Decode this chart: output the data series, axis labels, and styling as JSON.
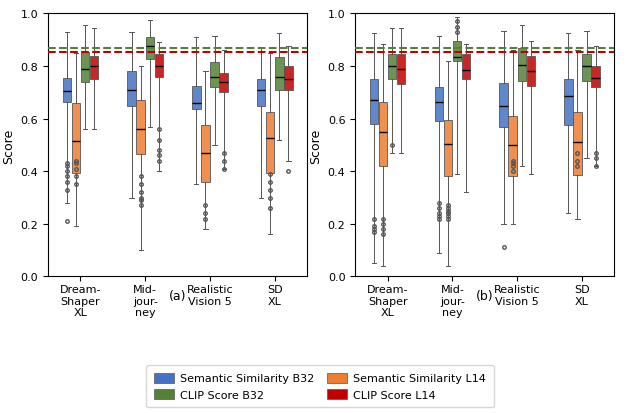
{
  "title_a": "(a)",
  "title_b": "(b)",
  "ylabel": "Score",
  "ylim": [
    0.0,
    1.0
  ],
  "yticks": [
    0.0,
    0.2,
    0.4,
    0.6,
    0.8,
    1.0
  ],
  "categories": [
    "Dream-\nShaper\nXL",
    "Mid-\njour-\nney",
    "Realistic\nVision 5",
    "SD\nXL"
  ],
  "colors": {
    "blue": "#4472C4",
    "orange": "#ED7D31",
    "green": "#548235",
    "red": "#C00000"
  },
  "hline_green": 0.869,
  "hline_red": 0.853,
  "box_width": 0.13,
  "subplot_a": {
    "blue": {
      "DreamShaper": {
        "q1": 0.665,
        "median": 0.705,
        "q3": 0.755,
        "whislo": 0.28,
        "whishi": 0.93,
        "fliers": [
          0.43,
          0.42,
          0.4,
          0.38,
          0.36,
          0.33,
          0.21
        ]
      },
      "Midjourney": {
        "q1": 0.65,
        "median": 0.71,
        "q3": 0.78,
        "whislo": 0.3,
        "whishi": 0.93,
        "fliers": []
      },
      "RealisticVision": {
        "q1": 0.635,
        "median": 0.66,
        "q3": 0.725,
        "whislo": 0.35,
        "whishi": 0.91,
        "fliers": []
      },
      "SDXL": {
        "q1": 0.65,
        "median": 0.71,
        "q3": 0.75,
        "whislo": 0.3,
        "whishi": 0.87,
        "fliers": []
      }
    },
    "orange": {
      "DreamShaper": {
        "q1": 0.395,
        "median": 0.515,
        "q3": 0.66,
        "whislo": 0.19,
        "whishi": 0.85,
        "fliers": [
          0.44,
          0.43,
          0.41,
          0.38,
          0.35
        ]
      },
      "Midjourney": {
        "q1": 0.465,
        "median": 0.56,
        "q3": 0.67,
        "whislo": 0.1,
        "whishi": 0.8,
        "fliers": [
          0.38,
          0.35,
          0.32,
          0.3,
          0.29,
          0.27
        ]
      },
      "RealisticVision": {
        "q1": 0.36,
        "median": 0.47,
        "q3": 0.575,
        "whislo": 0.18,
        "whishi": 0.78,
        "fliers": [
          0.27,
          0.24,
          0.22
        ]
      },
      "SDXL": {
        "q1": 0.395,
        "median": 0.525,
        "q3": 0.625,
        "whislo": 0.16,
        "whishi": 0.85,
        "fliers": [
          0.39,
          0.36,
          0.33,
          0.3,
          0.26
        ]
      }
    },
    "green": {
      "DreamShaper": {
        "q1": 0.74,
        "median": 0.79,
        "q3": 0.855,
        "whislo": 0.56,
        "whishi": 0.955,
        "fliers": []
      },
      "Midjourney": {
        "q1": 0.825,
        "median": 0.875,
        "q3": 0.91,
        "whislo": 0.57,
        "whishi": 0.975,
        "fliers": []
      },
      "RealisticVision": {
        "q1": 0.72,
        "median": 0.76,
        "q3": 0.815,
        "whislo": 0.5,
        "whishi": 0.915,
        "fliers": []
      },
      "SDXL": {
        "q1": 0.71,
        "median": 0.76,
        "q3": 0.835,
        "whislo": 0.52,
        "whishi": 0.925,
        "fliers": []
      }
    },
    "red": {
      "DreamShaper": {
        "q1": 0.75,
        "median": 0.8,
        "q3": 0.84,
        "whislo": 0.56,
        "whishi": 0.945,
        "fliers": []
      },
      "Midjourney": {
        "q1": 0.76,
        "median": 0.8,
        "q3": 0.845,
        "whislo": 0.4,
        "whishi": 0.89,
        "fliers": [
          0.56,
          0.52,
          0.48,
          0.46,
          0.44
        ]
      },
      "RealisticVision": {
        "q1": 0.7,
        "median": 0.74,
        "q3": 0.775,
        "whislo": 0.41,
        "whishi": 0.86,
        "fliers": [
          0.47,
          0.44,
          0.41
        ]
      },
      "SDXL": {
        "q1": 0.71,
        "median": 0.75,
        "q3": 0.8,
        "whislo": 0.44,
        "whishi": 0.875,
        "fliers": [
          0.4
        ]
      }
    }
  },
  "subplot_b": {
    "blue": {
      "DreamShaper": {
        "q1": 0.58,
        "median": 0.67,
        "q3": 0.75,
        "whislo": 0.05,
        "whishi": 0.925,
        "fliers": [
          0.22,
          0.19,
          0.18,
          0.17
        ]
      },
      "Midjourney": {
        "q1": 0.59,
        "median": 0.665,
        "q3": 0.72,
        "whislo": 0.09,
        "whishi": 0.915,
        "fliers": [
          0.28,
          0.26,
          0.24,
          0.23,
          0.22
        ]
      },
      "RealisticVision": {
        "q1": 0.57,
        "median": 0.65,
        "q3": 0.735,
        "whislo": 0.2,
        "whishi": 0.935,
        "fliers": [
          0.11
        ]
      },
      "SDXL": {
        "q1": 0.575,
        "median": 0.685,
        "q3": 0.75,
        "whislo": 0.24,
        "whishi": 0.925,
        "fliers": []
      }
    },
    "orange": {
      "DreamShaper": {
        "q1": 0.42,
        "median": 0.55,
        "q3": 0.665,
        "whislo": 0.04,
        "whishi": 0.885,
        "fliers": [
          0.22,
          0.2,
          0.18,
          0.16
        ]
      },
      "Midjourney": {
        "q1": 0.38,
        "median": 0.505,
        "q3": 0.595,
        "whislo": 0.04,
        "whishi": 0.82,
        "fliers": [
          0.27,
          0.26,
          0.25,
          0.24,
          0.23,
          0.22
        ]
      },
      "RealisticVision": {
        "q1": 0.38,
        "median": 0.5,
        "q3": 0.61,
        "whislo": 0.2,
        "whishi": 0.86,
        "fliers": [
          0.44,
          0.43,
          0.42,
          0.4
        ]
      },
      "SDXL": {
        "q1": 0.385,
        "median": 0.51,
        "q3": 0.625,
        "whislo": 0.22,
        "whishi": 0.86,
        "fliers": [
          0.47,
          0.44,
          0.42
        ]
      }
    },
    "green": {
      "DreamShaper": {
        "q1": 0.75,
        "median": 0.8,
        "q3": 0.845,
        "whislo": 0.47,
        "whishi": 0.945,
        "fliers": [
          0.5
        ]
      },
      "Midjourney": {
        "q1": 0.82,
        "median": 0.835,
        "q3": 0.895,
        "whislo": 0.39,
        "whishi": 0.985,
        "fliers": [
          0.93,
          0.95,
          0.97
        ]
      },
      "RealisticVision": {
        "q1": 0.745,
        "median": 0.805,
        "q3": 0.87,
        "whislo": 0.42,
        "whishi": 0.955,
        "fliers": []
      },
      "SDXL": {
        "q1": 0.745,
        "median": 0.8,
        "q3": 0.845,
        "whislo": 0.45,
        "whishi": 0.935,
        "fliers": []
      }
    },
    "red": {
      "DreamShaper": {
        "q1": 0.73,
        "median": 0.79,
        "q3": 0.845,
        "whislo": 0.47,
        "whishi": 0.945,
        "fliers": []
      },
      "Midjourney": {
        "q1": 0.75,
        "median": 0.785,
        "q3": 0.845,
        "whislo": 0.32,
        "whishi": 0.885,
        "fliers": []
      },
      "RealisticVision": {
        "q1": 0.725,
        "median": 0.78,
        "q3": 0.84,
        "whislo": 0.39,
        "whishi": 0.895,
        "fliers": []
      },
      "SDXL": {
        "q1": 0.72,
        "median": 0.755,
        "q3": 0.8,
        "whislo": 0.42,
        "whishi": 0.875,
        "fliers": [
          0.47,
          0.45,
          0.42
        ]
      }
    }
  }
}
